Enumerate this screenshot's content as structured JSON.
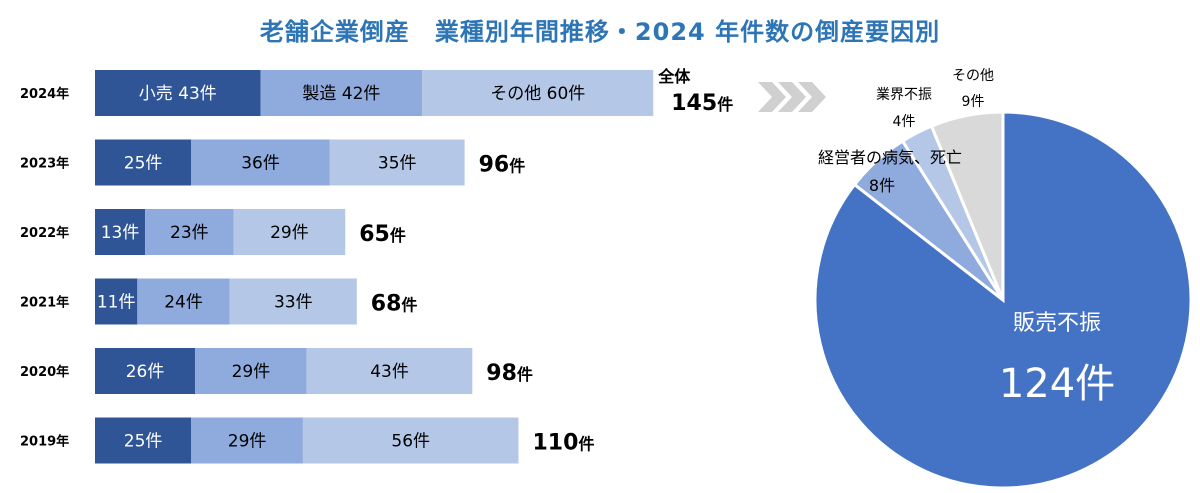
{
  "title": "老舗企業倒産　業種別年間推移・2024 年件数の倒産要因別",
  "chart_data": [
    {
      "type": "bar",
      "orientation": "horizontal",
      "stacked": true,
      "categories": [
        "2024年",
        "2023年",
        "2022年",
        "2021年",
        "2020年",
        "2019年"
      ],
      "series": [
        {
          "name": "小売",
          "values": [
            43,
            25,
            13,
            11,
            26,
            25
          ],
          "color": "#2f5597"
        },
        {
          "name": "製造",
          "values": [
            42,
            36,
            23,
            24,
            29,
            29
          ],
          "color": "#8faadc"
        },
        {
          "name": "その他",
          "values": [
            60,
            35,
            29,
            33,
            43,
            56
          ],
          "color": "#b4c7e7"
        }
      ],
      "segment_labels": [
        [
          "小売  43件",
          "製造  42件",
          "その他    60件"
        ],
        [
          "25件",
          "36件",
          "35件"
        ],
        [
          "13件",
          "23件",
          "29件"
        ],
        [
          "11件",
          "24件",
          "33件"
        ],
        [
          "26件",
          "29件",
          "43件"
        ],
        [
          "25件",
          "29件",
          "56件"
        ]
      ],
      "totals": [
        145,
        96,
        65,
        68,
        98,
        110
      ],
      "total_prefix_2024": "全体",
      "total_unit": "件"
    },
    {
      "type": "pie",
      "slices": [
        {
          "label": "販売不振",
          "value": 124,
          "value_label": "124件",
          "color": "#4472c4"
        },
        {
          "label": "経営者の病気、死亡",
          "value": 8,
          "value_label": "8件",
          "color": "#8faadc"
        },
        {
          "label": "業界不振",
          "value": 4,
          "value_label": "4件",
          "color": "#b4c7e7"
        },
        {
          "label": "その他",
          "value": 9,
          "value_label": "9件",
          "color": "#d9d9d9"
        }
      ],
      "start": "12 o'clock",
      "direction": "clockwise"
    }
  ],
  "arrow_icon": "chevron-arrows-icon",
  "arrow_color": "#d0d0d0"
}
